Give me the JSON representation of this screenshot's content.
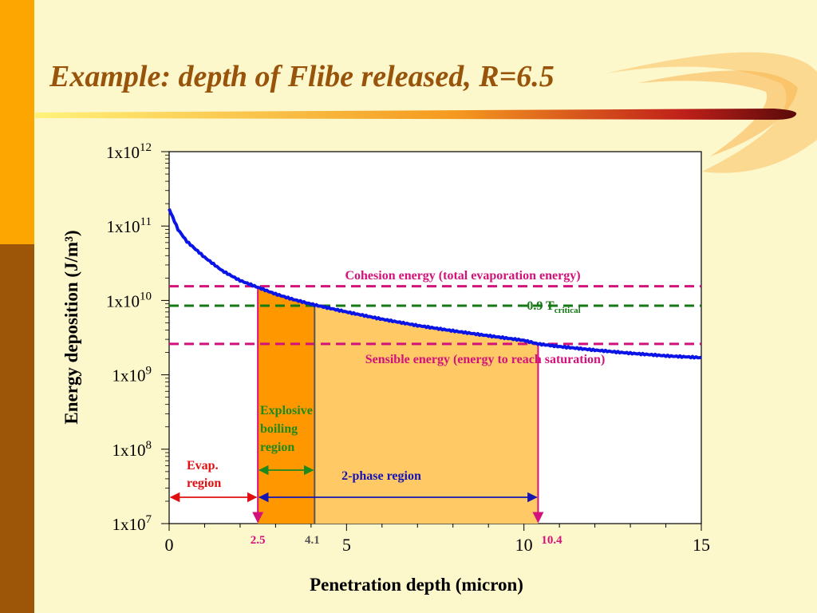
{
  "slide": {
    "title": "Example: depth of Flibe released, R=6.5"
  },
  "colors": {
    "band_top": "#fda602",
    "band_bottom": "#9d5507",
    "curve": "#0a14e6",
    "cohesion_line": "#d2127a",
    "critical_line": "#157a15",
    "sensible_line": "#d2127a",
    "explosive_fill": "#ff9800",
    "two_phase_fill": "#ffc966",
    "evap_arrow": "#e01010",
    "explosive_arrow": "#1e8a1e",
    "two_phase_arrow": "#1414b4"
  },
  "chart_data": {
    "type": "line",
    "xlabel": "Penetration depth (micron)",
    "ylabel": "Energy deposition (J/m³)",
    "xlim": [
      0,
      15
    ],
    "ylim": [
      10000000,
      1000000000000
    ],
    "yscale": "log",
    "x_ticks": [
      "0",
      "5",
      "10",
      "15"
    ],
    "y_ticks": [
      {
        "base": "1x10",
        "exp": "7"
      },
      {
        "base": "1x10",
        "exp": "8"
      },
      {
        "base": "1x10",
        "exp": "9"
      },
      {
        "base": "1x10",
        "exp": "10"
      },
      {
        "base": "1x10",
        "exp": "11"
      },
      {
        "base": "1x10",
        "exp": "12"
      }
    ],
    "series": [
      {
        "x": [
          0,
          0.25,
          0.5,
          1,
          1.5,
          2,
          2.5,
          3,
          3.5,
          4.1,
          5,
          6,
          7,
          8,
          9,
          10,
          10.4,
          11,
          12,
          13,
          14,
          15
        ],
        "y": [
          170000000000,
          90000000000,
          62000000000,
          38000000000,
          25000000000,
          18500000000,
          15000000000,
          12200000000,
          10300000000,
          8700000000,
          7000000000,
          5600000000,
          4600000000,
          3900000000,
          3350000000,
          2900000000,
          2600000000,
          2400000000,
          2150000000,
          1950000000,
          1800000000,
          1700000000
        ]
      }
    ],
    "horizontal_lines": [
      {
        "label": "Cohesion energy (total evaporation energy)",
        "y": 15500000000
      },
      {
        "label": "0.9 T",
        "sub": "critical",
        "y": 8500000000
      },
      {
        "label": "Sensible energy (energy to reach saturation)",
        "y": 2600000000
      }
    ],
    "vertical_markers": [
      {
        "label": "2.5",
        "x": 2.5
      },
      {
        "label": "4.1",
        "x": 4.1
      },
      {
        "label": "10.4",
        "x": 10.4
      }
    ],
    "regions": [
      {
        "label": "Evap. region",
        "lines": [
          "Evap.",
          "region"
        ],
        "x0": 0,
        "x1": 2.5
      },
      {
        "label": "Explosive boiling region",
        "lines": [
          "Explosive",
          "boiling",
          "region"
        ],
        "x0": 2.5,
        "x1": 4.1
      },
      {
        "label": "2-phase region",
        "lines": [
          "2-phase region"
        ],
        "x0": 2.5,
        "x1": 10.4
      }
    ]
  }
}
